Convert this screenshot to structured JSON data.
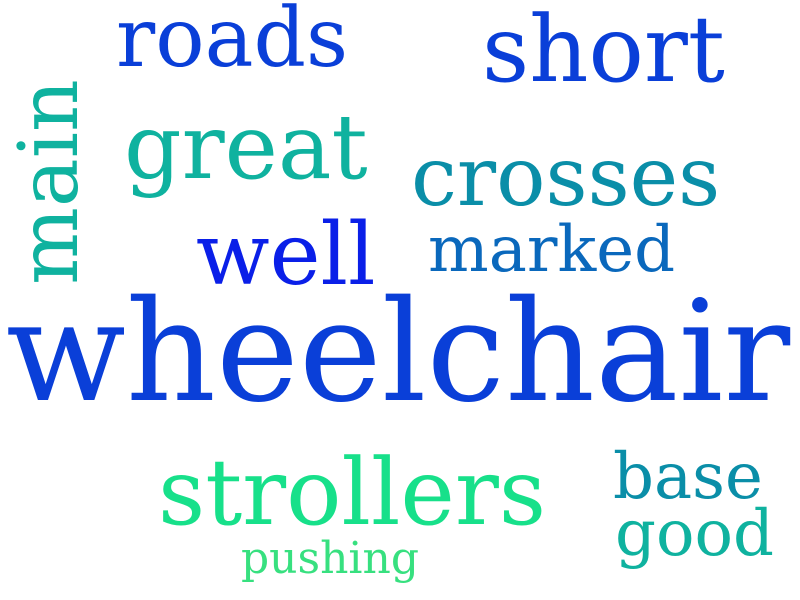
{
  "words": {
    "wheelchair": "wheelchair",
    "strollers": "strollers",
    "great": "great",
    "crosses": "crosses",
    "roads": "roads",
    "short": "short",
    "well": "well",
    "marked": "marked",
    "main": "main",
    "base": "base",
    "good": "good",
    "pushing": "pushing"
  },
  "colors": {
    "dark_blue": "#0a3fd8",
    "bright_blue": "#0a1fe8",
    "steel_blue": "#0a68bc",
    "teal": "#0a8ea8",
    "turquoise": "#0fb29f",
    "green": "#17e08a",
    "light_green": "#37e07f"
  }
}
